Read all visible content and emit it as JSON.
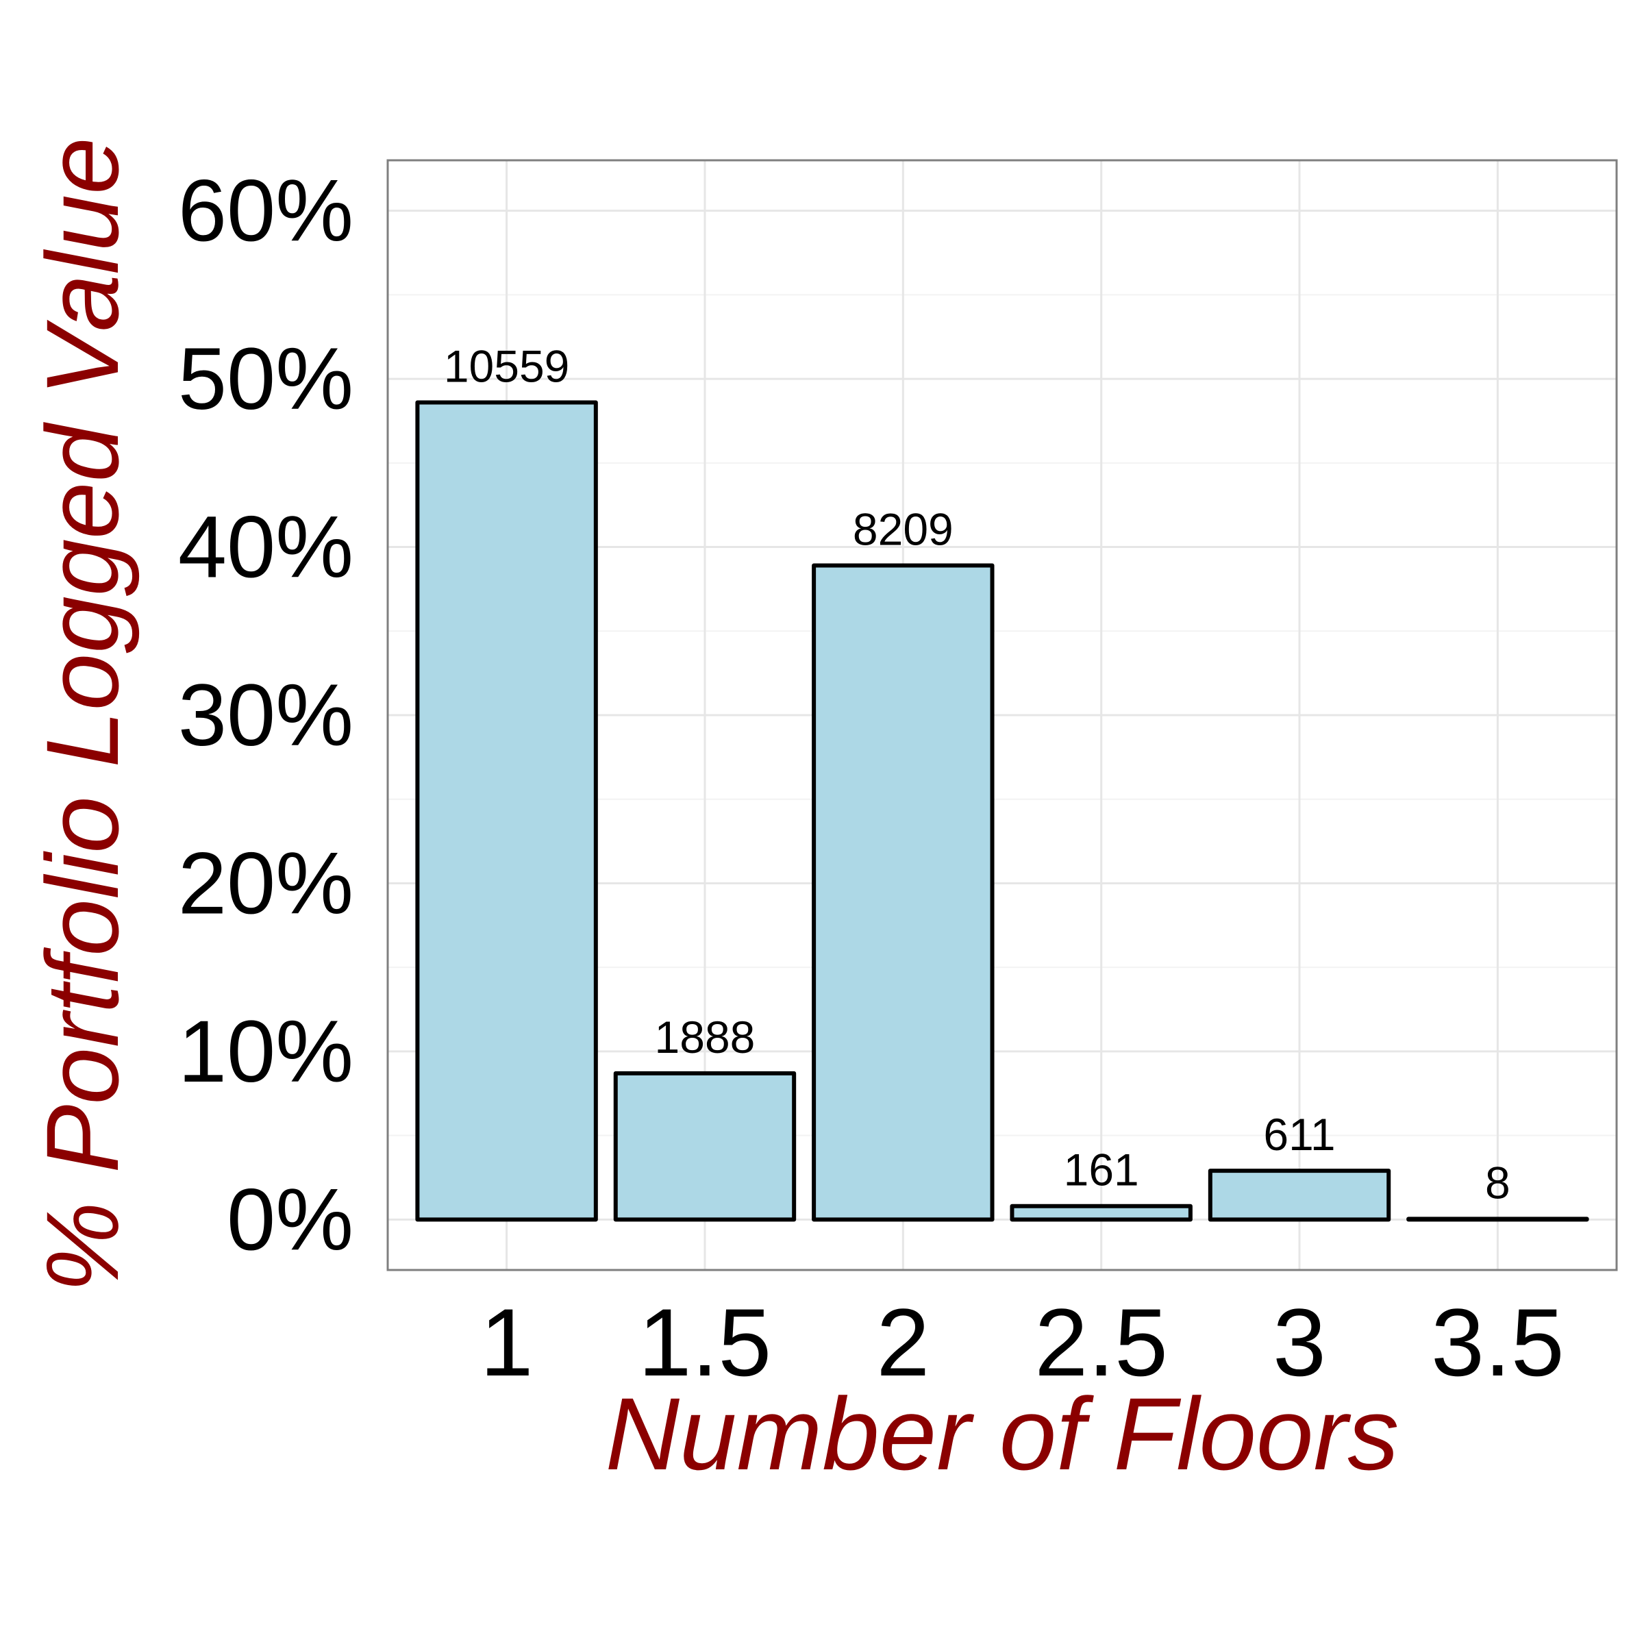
{
  "chart_data": {
    "type": "bar",
    "title": "",
    "xlabel": "Number of Floors",
    "ylabel": "% Portfolio Logged Value",
    "categories": [
      "1",
      "1.5",
      "2",
      "2.5",
      "3",
      "3.5"
    ],
    "values": [
      48.6,
      8.7,
      38.9,
      0.8,
      2.9,
      0.04
    ],
    "value_unit": "%",
    "data_labels": [
      "10559",
      "1888",
      "8209",
      "161",
      "611",
      "8"
    ],
    "ylim": [
      -3,
      63
    ],
    "yticks": [
      0,
      10,
      20,
      30,
      40,
      50,
      60
    ],
    "ytick_labels": [
      "0%",
      "10%",
      "20%",
      "30%",
      "40%",
      "50%",
      "60%"
    ],
    "grid": true,
    "legend": "none",
    "colors": {
      "bar_fill": "#ADD8E6",
      "bar_stroke": "#000000",
      "axis_title": "#8B0000",
      "panel_border": "#7F7F7F",
      "grid_major": "#E6E6E6",
      "grid_minor": "#F3F3F3"
    }
  }
}
